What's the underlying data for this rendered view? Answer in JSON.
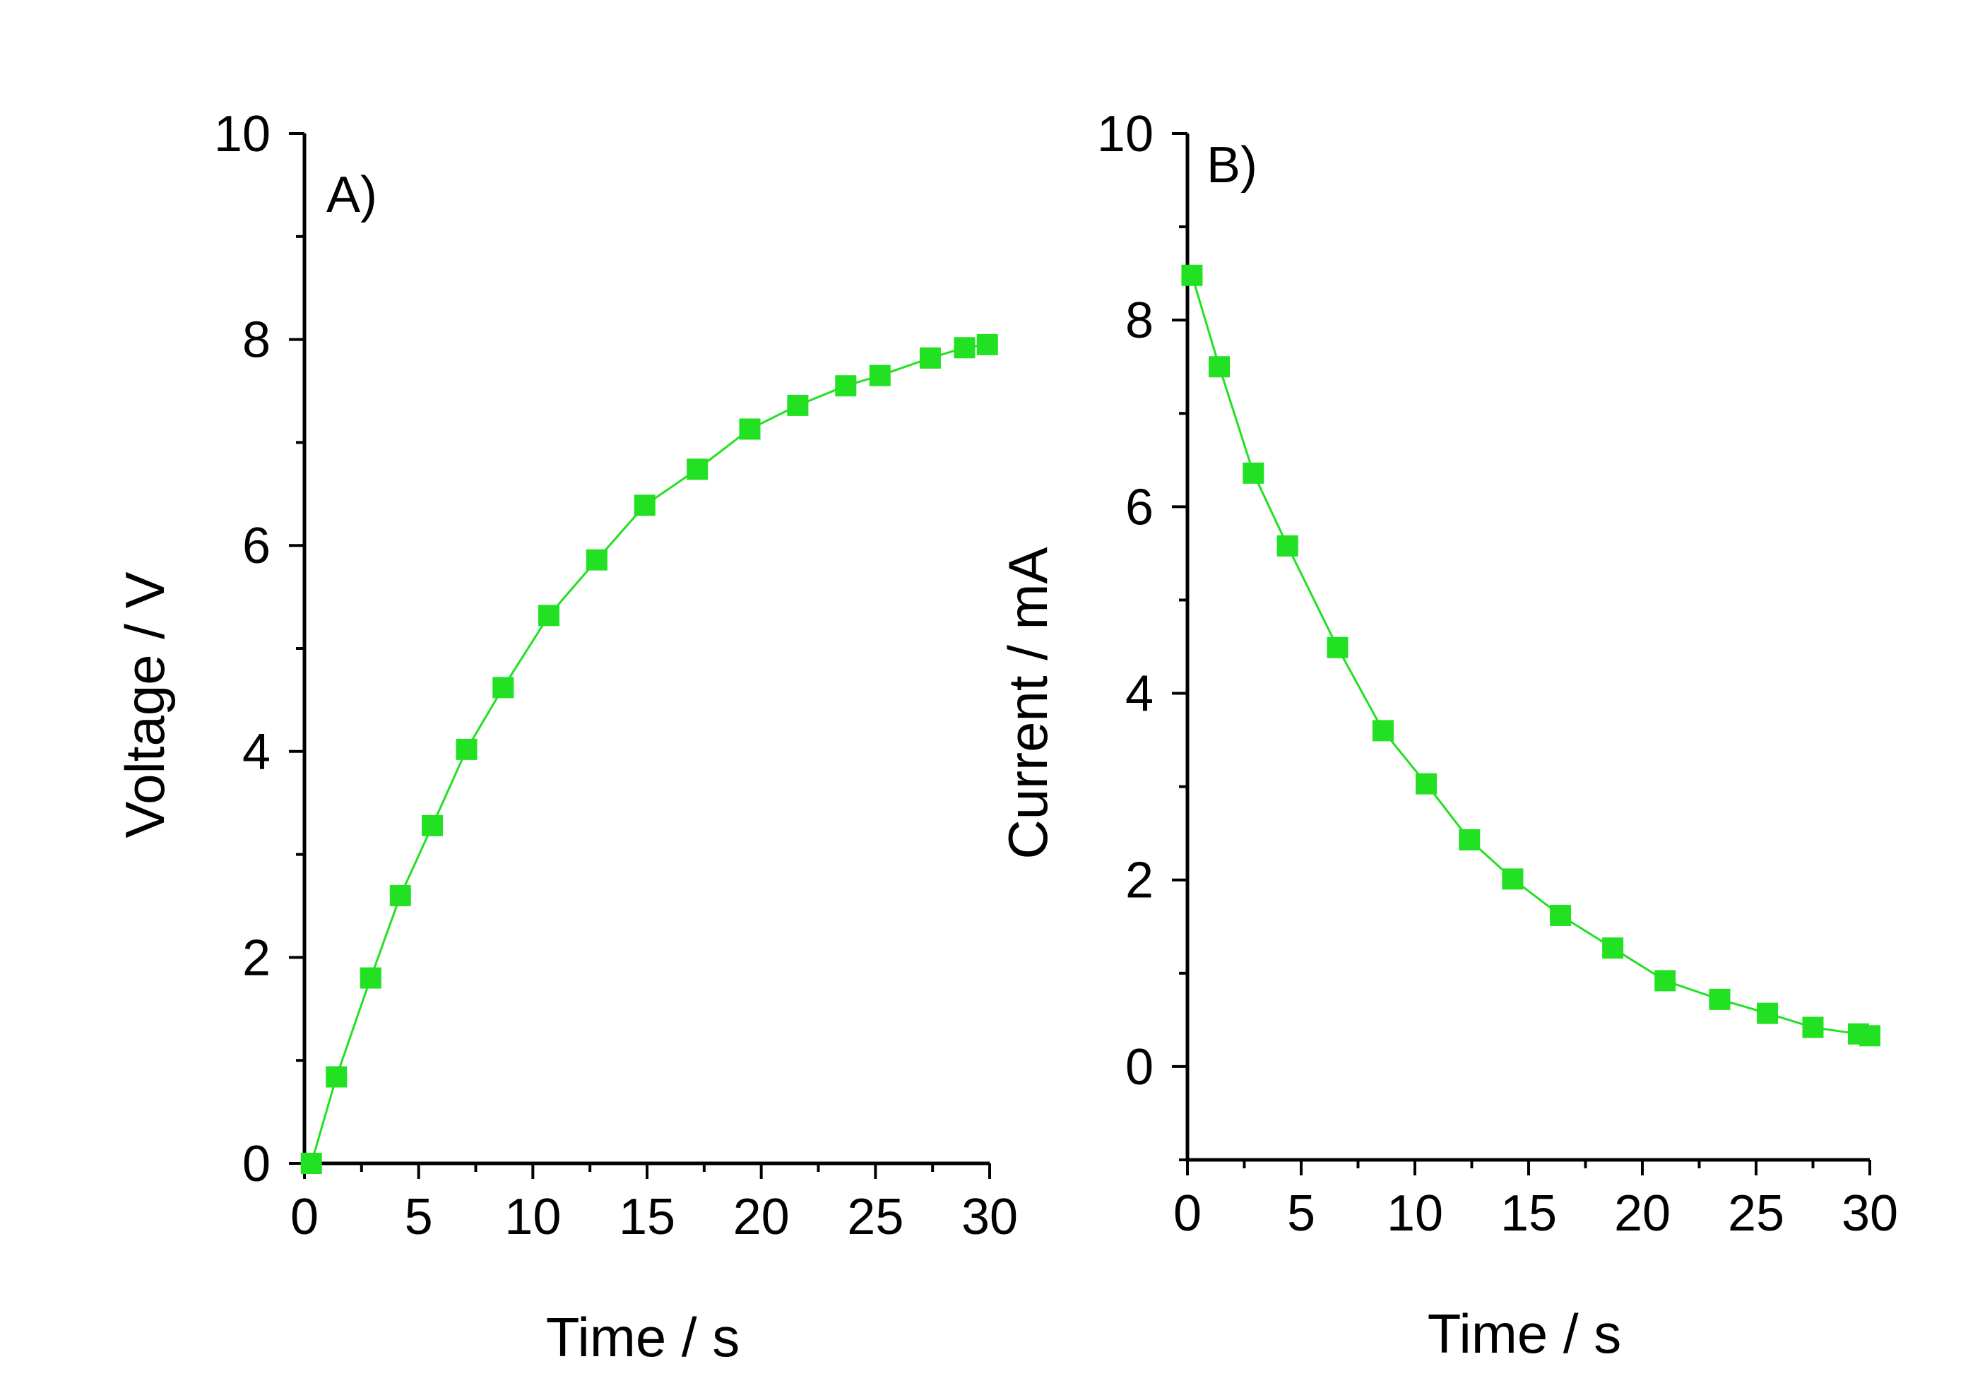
{
  "chart_data": [
    {
      "type": "line",
      "panel_label": "A)",
      "xlabel": "Time / s",
      "ylabel": "Voltage / V",
      "xlim": [
        0,
        30
      ],
      "ylim": [
        0,
        10
      ],
      "xticks": [
        0,
        5,
        10,
        15,
        20,
        25,
        30
      ],
      "yticks": [
        0,
        2,
        4,
        6,
        8,
        10
      ],
      "x_tick_labels": [
        "0",
        "5",
        "10",
        "15",
        "20",
        "25",
        "30"
      ],
      "y_tick_labels": [
        "0",
        "2",
        "4",
        "6",
        "8",
        "10"
      ],
      "series": [
        {
          "name": "Voltage",
          "color": "#22e022",
          "marker": "square",
          "x": [
            0.3,
            1.4,
            2.9,
            4.2,
            5.6,
            7.1,
            8.7,
            10.7,
            12.8,
            14.9,
            17.2,
            19.5,
            21.6,
            23.7,
            25.2,
            27.4,
            28.9,
            29.9
          ],
          "y": [
            0.0,
            0.84,
            1.8,
            2.6,
            3.28,
            4.02,
            4.62,
            5.32,
            5.86,
            6.39,
            6.74,
            7.13,
            7.36,
            7.55,
            7.65,
            7.82,
            7.92,
            7.95
          ]
        }
      ],
      "grid": false
    },
    {
      "type": "line",
      "panel_label": "B)",
      "xlabel": "Time / s",
      "ylabel": "Current / mA",
      "xlim": [
        0,
        30
      ],
      "ylim": [
        -1,
        10
      ],
      "xticks": [
        0,
        5,
        10,
        15,
        20,
        25,
        30
      ],
      "yticks": [
        0,
        2,
        4,
        6,
        8,
        10
      ],
      "x_tick_labels": [
        "0",
        "5",
        "10",
        "15",
        "20",
        "25",
        "30"
      ],
      "y_tick_labels": [
        "0",
        "2",
        "4",
        "6",
        "8",
        "10"
      ],
      "series": [
        {
          "name": "Current",
          "color": "#22e022",
          "marker": "square",
          "x": [
            0.2,
            1.4,
            2.9,
            4.4,
            6.6,
            8.6,
            10.5,
            12.4,
            14.3,
            16.4,
            18.7,
            21.0,
            23.4,
            25.5,
            27.5,
            29.5,
            30.0
          ],
          "y": [
            8.48,
            7.5,
            6.36,
            5.58,
            4.49,
            3.6,
            3.03,
            2.43,
            2.01,
            1.62,
            1.27,
            0.92,
            0.72,
            0.57,
            0.42,
            0.35,
            0.33
          ]
        }
      ],
      "grid": false
    }
  ]
}
